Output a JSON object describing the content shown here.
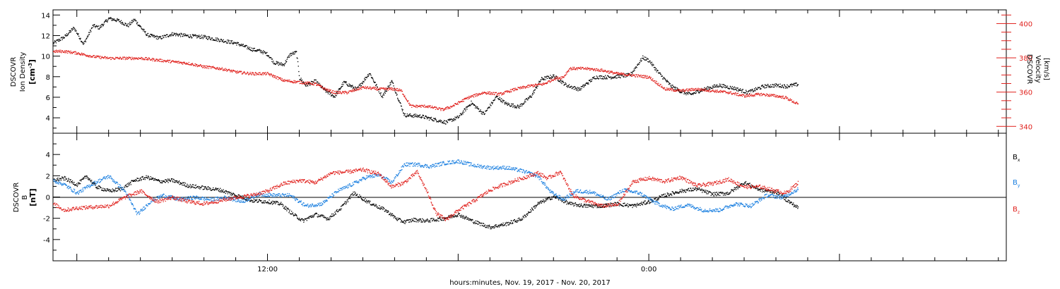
{
  "chart_data": [
    {
      "type": "scatter",
      "title": "",
      "xlabel": "hours:minutes, Nov. 19, 2017 - Nov. 20, 2017",
      "x_units": "hours since 00:00 Nov 19 2017",
      "x_range": [
        5.25,
        35.25
      ],
      "grid": false,
      "left_axis": {
        "label": "DSCOVR\nIon Density\n[cm-3]",
        "label_lines": [
          "DSCOVR",
          "Ion Density"
        ],
        "unit_main": "[cm",
        "unit_sup": "-3",
        "unit_end": "]",
        "ylim": [
          2.5,
          14.5
        ],
        "ticks": [
          4,
          6,
          8,
          10,
          12,
          14
        ],
        "color": "#000000"
      },
      "right_axis": {
        "label": "DSCOVR\nVelocity\n[km/s]",
        "label_lines": [
          "DSCOVR",
          "Velocity",
          "[km/s]"
        ],
        "ylim": [
          336,
          408
        ],
        "ticks": [
          340,
          360,
          380,
          400
        ],
        "color": "#e0201c"
      },
      "series": [
        {
          "axis": "left",
          "color": "#000000",
          "x": [
            5.25,
            5.6,
            5.9,
            6.2,
            6.5,
            6.7,
            7,
            7.3,
            7.6,
            7.8,
            8.2,
            8.6,
            9.0,
            9.5,
            10.0,
            10.5,
            11.0,
            11.5,
            11.8,
            12.0,
            12.2,
            12.5,
            12.7,
            12.9,
            13.0,
            13.2,
            13.5,
            13.8,
            14.1,
            14.4,
            14.8,
            15.2,
            15.6,
            15.9,
            16.3,
            16.8,
            17.2,
            17.6,
            18.0,
            18.4,
            18.8,
            19.2,
            19.5,
            19.9,
            20.3,
            20.6,
            21.0,
            21.4,
            21.8,
            22.3,
            22.8,
            23.4,
            23.8,
            24.0,
            24.3,
            24.7,
            25.0,
            25.3,
            25.7,
            26.2,
            26.7,
            27.1,
            27.6,
            28.0,
            28.3,
            28.7
          ],
          "y": [
            11.3,
            11.9,
            12.8,
            11.2,
            13.0,
            12.8,
            13.7,
            13.5,
            13.0,
            13.6,
            12.1,
            11.8,
            12.2,
            12.0,
            11.9,
            11.6,
            11.3,
            10.7,
            10.5,
            10.2,
            9.4,
            9.2,
            10.2,
            10.4,
            7.9,
            7.2,
            7.6,
            6.7,
            6.1,
            7.5,
            6.8,
            8.4,
            6.1,
            7.6,
            4.3,
            4.2,
            3.9,
            3.6,
            4.1,
            5.5,
            4.4,
            6.1,
            5.4,
            5.1,
            6.2,
            7.8,
            8.1,
            7.2,
            6.8,
            8.0,
            8.0,
            8.2,
            9.9,
            9.6,
            8.4,
            7.1,
            6.6,
            6.3,
            6.8,
            7.2,
            6.9,
            6.5,
            7.1,
            7.2,
            7.1,
            7.3
          ]
        },
        {
          "axis": "right",
          "color": "#e0201c",
          "x": [
            5.25,
            5.6,
            6.0,
            6.5,
            7.0,
            7.5,
            8.0,
            8.5,
            9.0,
            9.5,
            10.0,
            10.5,
            11.0,
            11.5,
            12.0,
            12.5,
            13.0,
            13.5,
            13.8,
            14.1,
            14.5,
            15.0,
            15.5,
            16.0,
            16.2,
            16.5,
            17.0,
            17.5,
            17.8,
            18.3,
            18.8,
            19.3,
            19.8,
            20.3,
            20.7,
            21.0,
            21.3,
            21.5,
            22.0,
            22.5,
            23.0,
            23.5,
            24.0,
            24.5,
            25.0,
            25.5,
            26.0,
            26.5,
            27.0,
            27.5,
            28.0,
            28.3,
            28.7
          ],
          "y": [
            384,
            384,
            383,
            381,
            380,
            380,
            380,
            379,
            378,
            377,
            375,
            374,
            372,
            371,
            371,
            367,
            366,
            365,
            362,
            360,
            360,
            363,
            362,
            362,
            361,
            352,
            352,
            350,
            352,
            357,
            360,
            359,
            362,
            364,
            365,
            368,
            369,
            374,
            374,
            373,
            371,
            370,
            369,
            362,
            361,
            362,
            361,
            360,
            358,
            359,
            358,
            357,
            353
          ]
        }
      ]
    },
    {
      "type": "scatter",
      "title": "",
      "x_units": "hours since 00:00 Nov 19 2017",
      "x_range": [
        5.25,
        35.25
      ],
      "grid": false,
      "zero_line": true,
      "left_axis": {
        "label": "DSCOVR\nB\n[nT]",
        "label_lines": [
          "DSCOVR",
          "B",
          "[nT]"
        ],
        "ylim": [
          -6,
          6
        ],
        "ticks": [
          -4,
          -2,
          0,
          2,
          4
        ],
        "color": "#000000"
      },
      "legend_position": "right",
      "series": [
        {
          "name": "Bx",
          "label_main": "B",
          "label_sub": "x",
          "color": "#000000",
          "x": [
            5.25,
            5.6,
            6.0,
            6.3,
            6.6,
            7.0,
            7.4,
            7.8,
            8.2,
            8.6,
            9.0,
            9.5,
            10.0,
            10.5,
            11.0,
            11.5,
            12.0,
            12.4,
            12.8,
            13.1,
            13.5,
            13.9,
            14.3,
            14.7,
            15.2,
            15.7,
            16.1,
            16.3,
            16.6,
            17.0,
            17.5,
            18.0,
            18.5,
            19.0,
            19.5,
            20.0,
            20.5,
            21.0,
            21.5,
            22.0,
            22.5,
            23.0,
            23.5,
            24.0,
            24.5,
            25.0,
            25.5,
            26.0,
            26.5,
            27.0,
            27.5,
            28.0,
            28.4,
            28.7
          ],
          "y": [
            1.6,
            1.8,
            1.2,
            2.0,
            1.0,
            0.6,
            0.8,
            1.6,
            1.9,
            1.5,
            1.6,
            1.1,
            0.9,
            0.7,
            0.2,
            -0.3,
            -0.4,
            -0.6,
            -1.6,
            -2.2,
            -1.6,
            -2.0,
            -1.0,
            0.4,
            -0.5,
            -1.2,
            -2.1,
            -2.3,
            -2.1,
            -2.2,
            -2.0,
            -1.6,
            -2.3,
            -2.8,
            -2.5,
            -2.0,
            -0.6,
            0.1,
            -0.6,
            -0.8,
            -0.8,
            -0.6,
            -0.8,
            -0.4,
            0.2,
            0.6,
            0.8,
            0.3,
            0.4,
            1.4,
            0.7,
            0.5,
            -0.4,
            -1.0
          ]
        },
        {
          "name": "By",
          "label_main": "B",
          "label_sub": "y",
          "color": "#1a7fe0",
          "x": [
            5.25,
            5.6,
            6.0,
            6.5,
            7.0,
            7.5,
            7.9,
            8.3,
            8.7,
            9.2,
            9.7,
            10.2,
            10.7,
            11.2,
            11.7,
            12.2,
            12.7,
            13.2,
            13.7,
            14.2,
            14.7,
            15.1,
            15.5,
            15.9,
            16.3,
            16.7,
            17.1,
            17.5,
            18.0,
            18.5,
            19.0,
            19.5,
            20.0,
            20.5,
            20.9,
            21.3,
            21.7,
            22.2,
            22.7,
            23.2,
            23.7,
            24.2,
            24.7,
            25.2,
            25.7,
            26.2,
            26.7,
            27.2,
            27.7,
            28.2,
            28.7
          ],
          "y": [
            1.6,
            1.2,
            0.4,
            1.3,
            2.0,
            0.6,
            -1.6,
            -0.4,
            0.2,
            -0.2,
            0.0,
            -0.2,
            0.0,
            -0.4,
            0.3,
            0.2,
            0.2,
            -0.8,
            -0.6,
            0.6,
            1.3,
            1.9,
            2.1,
            1.4,
            3.1,
            3.1,
            2.9,
            3.2,
            3.4,
            3.0,
            2.8,
            2.8,
            2.5,
            2.0,
            0.5,
            -0.2,
            0.6,
            0.5,
            -0.2,
            0.7,
            0.4,
            -0.5,
            -1.1,
            -0.7,
            -1.2,
            -1.2,
            -0.6,
            -0.8,
            0.2,
            0.0,
            0.8
          ]
        },
        {
          "name": "Bz",
          "label_main": "B",
          "label_sub": "z",
          "color": "#e0201c",
          "x": [
            5.25,
            5.6,
            6.0,
            6.5,
            7.0,
            7.5,
            8.0,
            8.5,
            9.0,
            9.5,
            10.0,
            10.5,
            11.0,
            11.5,
            12.0,
            12.5,
            13.0,
            13.5,
            14.0,
            14.5,
            15.0,
            15.5,
            15.9,
            16.3,
            16.7,
            17.0,
            17.3,
            17.6,
            18.0,
            18.5,
            19.0,
            19.5,
            20.0,
            20.5,
            20.8,
            21.2,
            21.6,
            22.0,
            22.5,
            23.0,
            23.5,
            24.0,
            24.5,
            25.0,
            25.5,
            26.0,
            26.5,
            27.0,
            27.5,
            28.0,
            28.3,
            28.7
          ],
          "y": [
            -0.6,
            -1.2,
            -1.0,
            -0.9,
            -0.8,
            0.0,
            0.6,
            -0.4,
            0.0,
            -0.4,
            -0.6,
            -0.3,
            0.0,
            0.2,
            0.6,
            1.3,
            1.6,
            1.4,
            2.3,
            2.4,
            2.6,
            2.2,
            1.0,
            1.4,
            2.4,
            0.6,
            -1.5,
            -2.1,
            -1.2,
            -0.3,
            0.7,
            1.3,
            1.8,
            2.3,
            1.8,
            2.4,
            0.2,
            -0.3,
            -0.8,
            -0.7,
            1.5,
            1.8,
            1.5,
            1.9,
            1.1,
            1.3,
            1.7,
            1.0,
            1.0,
            0.6,
            0.4,
            1.4
          ]
        }
      ]
    }
  ],
  "x_axis": {
    "tick_labels": [
      "12:00",
      "0:00"
    ],
    "tick_hours": [
      12,
      24
    ]
  }
}
